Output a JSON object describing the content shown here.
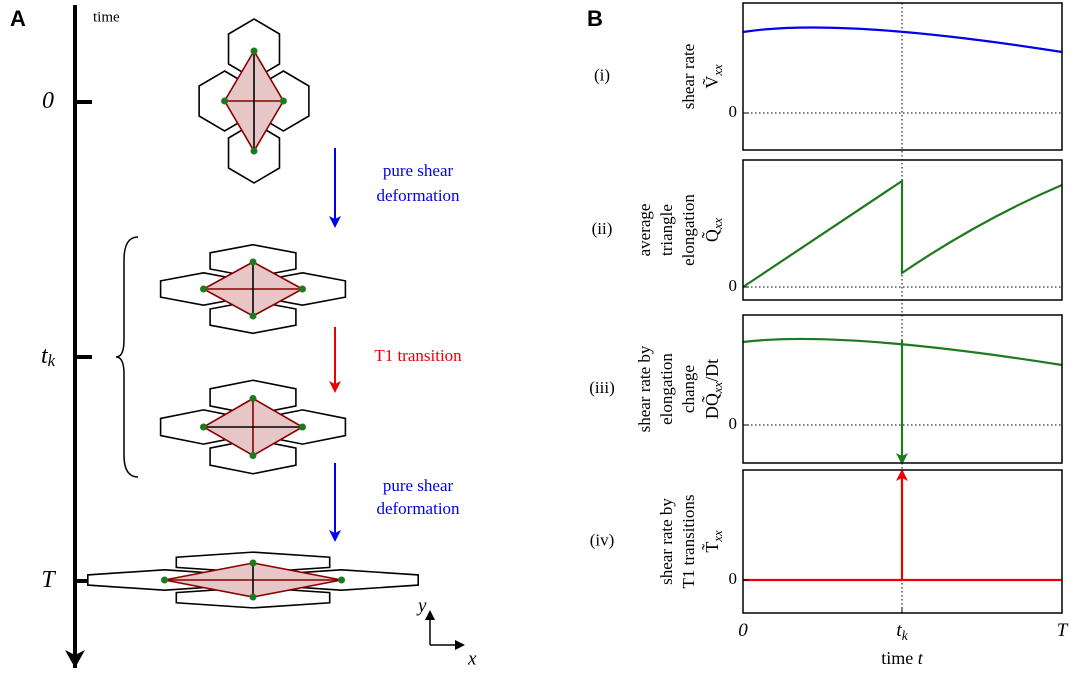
{
  "panel_a": {
    "label": "A",
    "axis_title": "time",
    "ticks": [
      {
        "main": "0"
      },
      {
        "main": "t",
        "sub": "k"
      },
      {
        "main": "T"
      }
    ],
    "steps": [
      {
        "lines": [
          "pure shear",
          "deformation"
        ]
      },
      {
        "lines": [
          "T1 transition"
        ]
      },
      {
        "lines": [
          "pure shear",
          "deformation"
        ]
      }
    ],
    "axes": {
      "y": "y",
      "x": "x"
    }
  },
  "panel_b": {
    "label": "B",
    "rows": [
      {
        "numeral": "(i)",
        "description": [
          "shear rate"
        ],
        "symbol": {
          "main": "Ṽ",
          "sub": "xx"
        },
        "zero": "0"
      },
      {
        "numeral": "(ii)",
        "description": [
          "average",
          "triangle",
          "elongation"
        ],
        "symbol": {
          "main": "Q̃",
          "sub": "xx"
        },
        "zero": "0"
      },
      {
        "numeral": "(iii)",
        "description": [
          "shear rate by",
          "elongation",
          "change"
        ],
        "symbol": {
          "main": "DQ̃",
          "sub": "xx",
          "tail": "/Dt"
        },
        "zero": "0"
      },
      {
        "numeral": "(iv)",
        "description": [
          "shear rate by",
          "T1 transitions"
        ],
        "symbol": {
          "main": "T̃",
          "sub": "xx"
        },
        "zero": "0"
      }
    ],
    "x_ticks": [
      {
        "main": "0"
      },
      {
        "main": "t",
        "sub": "k"
      },
      {
        "main": "T"
      }
    ],
    "x_title": {
      "text": "time",
      "var": "t"
    }
  }
}
